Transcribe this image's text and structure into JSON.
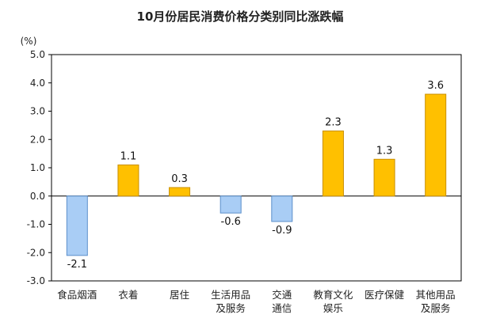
{
  "chart_data": {
    "type": "bar",
    "title": "10月份居民消费价格分类别同比涨跌幅",
    "unit_label": "(%)",
    "categories": [
      [
        "食品烟酒"
      ],
      [
        "衣着"
      ],
      [
        "居住"
      ],
      [
        "生活用品",
        "及服务"
      ],
      [
        "交通",
        "通信"
      ],
      [
        "教育文化",
        "娱乐"
      ],
      [
        "医疗保健"
      ],
      [
        "其他用品",
        "及服务"
      ]
    ],
    "values": [
      -2.1,
      1.1,
      0.3,
      -0.6,
      -0.9,
      2.3,
      1.3,
      3.6
    ],
    "value_labels": [
      "-2.1",
      "1.1",
      "0.3",
      "-0.6",
      "-0.9",
      "2.3",
      "1.3",
      "3.6"
    ],
    "ylim": [
      -3.0,
      5.0
    ],
    "yticks": [
      5.0,
      4.0,
      3.0,
      2.0,
      1.0,
      0.0,
      -1.0,
      -2.0,
      -3.0
    ],
    "ytick_labels": [
      "5.0",
      "4.0",
      "3.0",
      "2.0",
      "1.0",
      "0.0",
      "-1.0",
      "-2.0",
      "-3.0"
    ],
    "xlabel": "",
    "ylabel": "",
    "grid": false,
    "colors": {
      "positive": "#FFC000",
      "positive_edge": "#C98F00",
      "negative": "#A9CDF5",
      "negative_edge": "#5B8FCB",
      "axis": "#000000",
      "frame": "#000000"
    }
  }
}
